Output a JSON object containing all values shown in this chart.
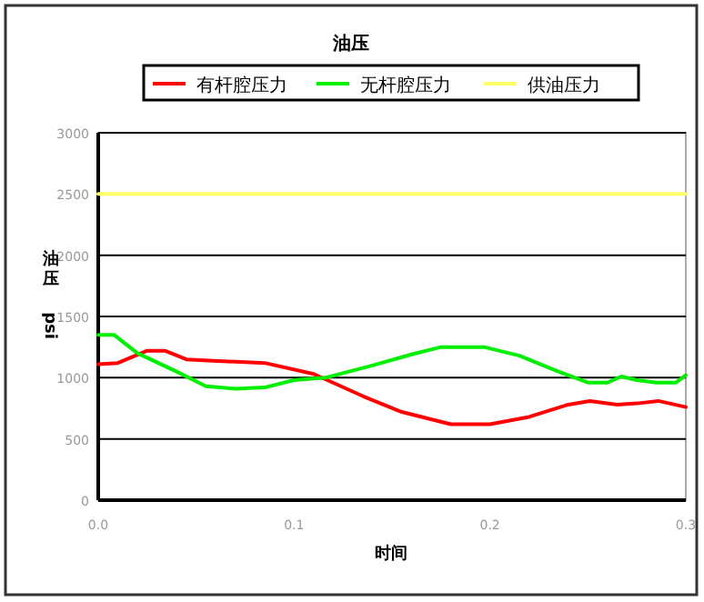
{
  "chart_data": {
    "type": "line",
    "title": "油压",
    "xlabel": "时间",
    "ylabel": "油压 psi",
    "xlim": [
      0,
      0.3
    ],
    "xticks": [
      {
        "value": 0,
        "label": "0.0"
      },
      {
        "value": 0.1,
        "label": "0.1"
      },
      {
        "value": 0.2,
        "label": "0.2"
      },
      {
        "value": 0.3,
        "label": "0.3"
      }
    ],
    "ylim": [
      0,
      3000
    ],
    "yticks": [
      0,
      500,
      1000,
      1500,
      2000,
      2500,
      3000
    ],
    "grid": "y",
    "legend": "top",
    "marker": "none",
    "line_style": "solid",
    "series": [
      {
        "name": "有杆腔压力",
        "color": "#ff0000",
        "x": [
          0,
          0.01,
          0.025,
          0.034,
          0.045,
          0.056,
          0.085,
          0.11,
          0.135,
          0.155,
          0.18,
          0.2,
          0.22,
          0.24,
          0.251,
          0.265,
          0.275,
          0.286,
          0.3
        ],
        "values": [
          1110,
          1120,
          1220,
          1220,
          1150,
          1140,
          1120,
          1030,
          850,
          720,
          620,
          620,
          680,
          780,
          810,
          780,
          790,
          810,
          760
        ]
      },
      {
        "name": "无杆腔压力",
        "color": "#00ee00",
        "x": [
          0,
          0.008,
          0.02,
          0.04,
          0.055,
          0.07,
          0.085,
          0.1,
          0.116,
          0.14,
          0.16,
          0.175,
          0.197,
          0.215,
          0.235,
          0.25,
          0.26,
          0.267,
          0.275,
          0.285,
          0.295,
          0.3
        ],
        "values": [
          1350,
          1350,
          1200,
          1050,
          930,
          910,
          920,
          980,
          1000,
          1100,
          1190,
          1250,
          1250,
          1180,
          1050,
          960,
          960,
          1010,
          980,
          960,
          960,
          1020
        ]
      },
      {
        "name": "供油压力",
        "color": "#ffff66",
        "x": [
          0,
          0.3
        ],
        "values": [
          2500,
          2500
        ]
      }
    ]
  }
}
